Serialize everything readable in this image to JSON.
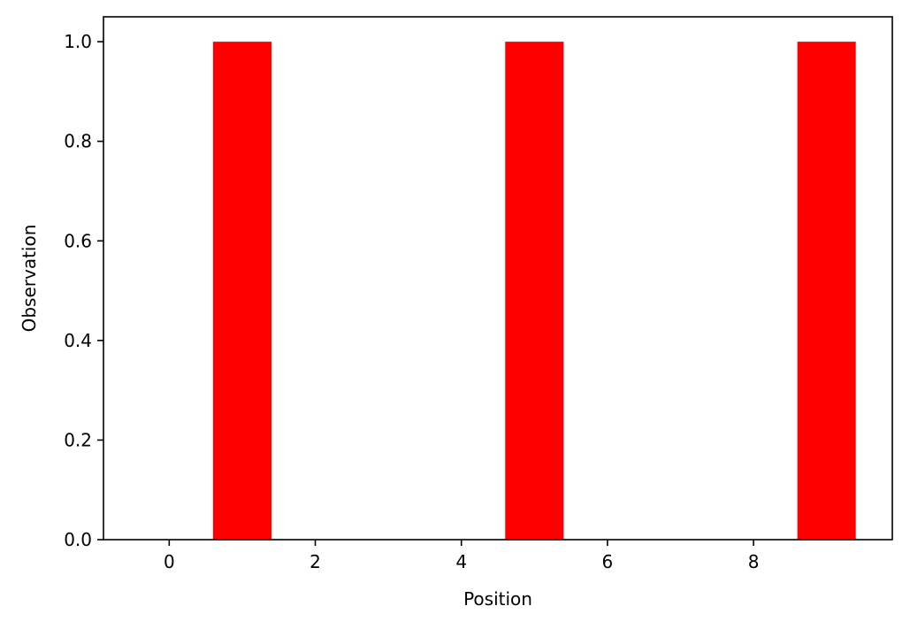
{
  "chart_data": {
    "type": "bar",
    "title": "",
    "xlabel": "Position",
    "ylabel": "Observation",
    "x": [
      0,
      1,
      2,
      3,
      4,
      5,
      6,
      7,
      8,
      9
    ],
    "values": [
      0,
      1,
      0,
      0,
      0,
      1,
      0,
      0,
      0,
      1
    ],
    "bar_width": 0.8,
    "xlim": [
      -0.9,
      9.9
    ],
    "ylim": [
      0,
      1.05
    ],
    "xticks": [
      0,
      2,
      4,
      6,
      8
    ],
    "xtick_labels": [
      "0",
      "2",
      "4",
      "6",
      "8"
    ],
    "yticks": [
      0,
      0.2,
      0.4,
      0.6,
      0.8,
      1.0
    ],
    "ytick_labels": [
      "0.0",
      "0.2",
      "0.4",
      "0.6",
      "0.8",
      "1.0"
    ],
    "grid": false,
    "legend": "none",
    "bar_color": "#ff0000",
    "axis_color": "#000000",
    "background_color": "#ffffff"
  }
}
